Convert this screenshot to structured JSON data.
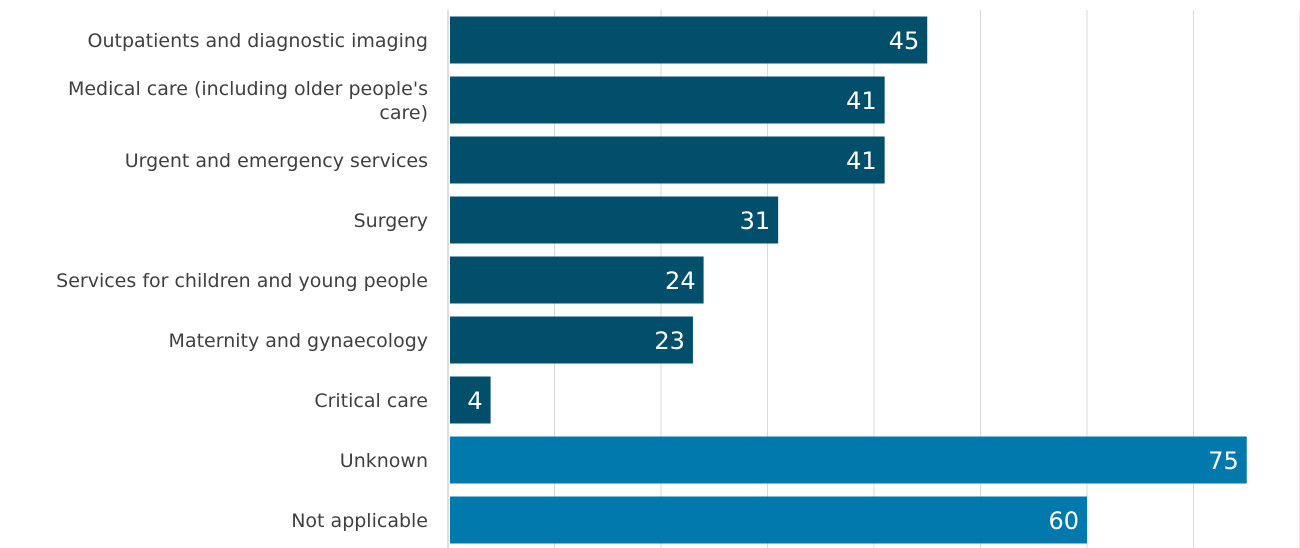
{
  "chart_data": {
    "type": "bar",
    "orientation": "horizontal",
    "title": "",
    "xlabel": "",
    "ylabel": "",
    "xlim": [
      0,
      80
    ],
    "grid": true,
    "legend": "none",
    "categories": [
      "Outpatients and diagnostic imaging",
      "Medical care (including older people's care)",
      "Urgent and emergency services",
      "Surgery",
      "Services for children and young people",
      "Maternity and gynaecology",
      "Critical care",
      "Unknown",
      "Not applicable"
    ],
    "category_lines": [
      [
        "Outpatients and diagnostic imaging"
      ],
      [
        "Medical care (including older people's",
        "care)"
      ],
      [
        "Urgent and emergency services"
      ],
      [
        "Surgery"
      ],
      [
        "Services for children and young people"
      ],
      [
        "Maternity and gynaecology"
      ],
      [
        "Critical care"
      ],
      [
        "Unknown"
      ],
      [
        "Not applicable"
      ]
    ],
    "values": [
      45,
      41,
      41,
      31,
      24,
      23,
      4,
      75,
      60
    ],
    "bar_colors": [
      "#024f6b",
      "#024f6b",
      "#024f6b",
      "#024f6b",
      "#024f6b",
      "#024f6b",
      "#024f6b",
      "#0179ac",
      "#0179ac"
    ],
    "label_color": "#ffffff",
    "category_label_color": "#404040",
    "gridline_color": "#d9d9d9"
  }
}
